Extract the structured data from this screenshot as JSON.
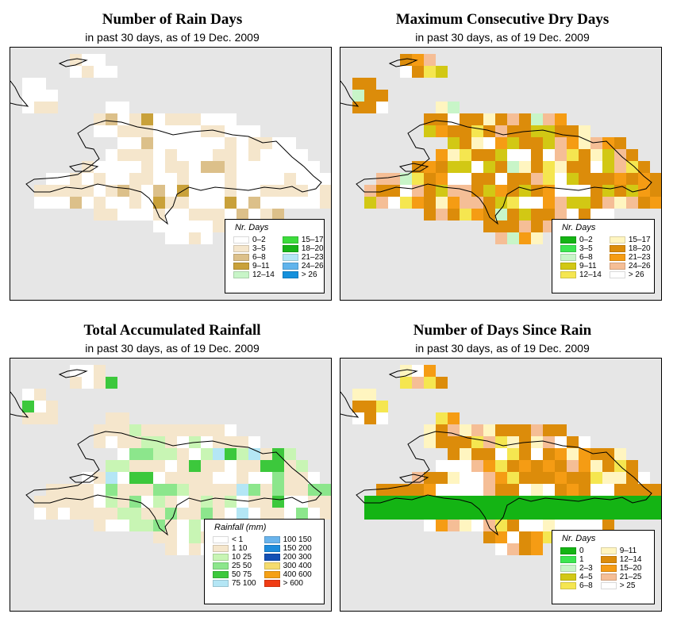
{
  "colors": {
    "map_background": "#e6e6e6",
    "coastline": "#000000"
  },
  "panels": [
    {
      "id": "rain-days",
      "title": "Number of Rain Days",
      "subtitle": "in past 30 days, as of  19 Dec. 2009",
      "legend": {
        "title": "Nr. Days",
        "items": [
          {
            "label": "0–2",
            "color": "#ffffff"
          },
          {
            "label": "3–5",
            "color": "#f5e6cc"
          },
          {
            "label": "6–8",
            "color": "#dcc08a"
          },
          {
            "label": "9–11",
            "color": "#c9a13a"
          },
          {
            "label": "12–14",
            "color": "#c8f5c8"
          },
          {
            "label": "15–17",
            "color": "#3cdc3c"
          },
          {
            "label": "18–20",
            "color": "#18b418"
          },
          {
            "label": "21–23",
            "color": "#b4e6f5"
          },
          {
            "label": "24–26",
            "color": "#60b4ec"
          },
          {
            "label": "> 26",
            "color": "#1490dc"
          }
        ]
      },
      "grid_palette": [
        "#ffffff",
        "#f5e6cc",
        "#dcc08a",
        "#c9a13a"
      ],
      "grid_weights": [
        62,
        30,
        6,
        2
      ]
    },
    {
      "id": "dry-days",
      "title": "Maximum Consecutive Dry Days",
      "subtitle": "in past 30 days, as of  19 Dec. 2009",
      "legend": {
        "title": "Nr. Days",
        "items": [
          {
            "label": "0–2",
            "color": "#14b414"
          },
          {
            "label": "3–5",
            "color": "#3ce650"
          },
          {
            "label": "6–8",
            "color": "#c8f5c8"
          },
          {
            "label": "9–11",
            "color": "#d2c814"
          },
          {
            "label": "12–14",
            "color": "#f5e650"
          },
          {
            "label": "15–17",
            "color": "#fff5c0"
          },
          {
            "label": "18–20",
            "color": "#dc8c0a"
          },
          {
            "label": "21–23",
            "color": "#f59c14"
          },
          {
            "label": "24–26",
            "color": "#f5be96"
          },
          {
            "label": "> 26",
            "color": "#ffffff"
          }
        ]
      },
      "grid_palette": [
        "#dc8c0a",
        "#f59c14",
        "#f5be96",
        "#d2c814",
        "#f5e650",
        "#fff5c0",
        "#ffffff",
        "#c8f5c8"
      ],
      "grid_weights": [
        38,
        14,
        12,
        10,
        8,
        8,
        8,
        2
      ]
    },
    {
      "id": "rainfall",
      "title": "Total Accumulated Rainfall",
      "subtitle": "in past 30 days, as of  19 Dec. 2009",
      "legend": {
        "title": "Rainfall (mm)",
        "items": [
          {
            "label": "< 1",
            "color": "#ffffff"
          },
          {
            "label": "1    10",
            "color": "#f5e6cc"
          },
          {
            "label": "10    25",
            "color": "#c8f5b4"
          },
          {
            "label": "25    50",
            "color": "#8ce68c"
          },
          {
            "label": "50    75",
            "color": "#3cc83c"
          },
          {
            "label": "75  100",
            "color": "#b4e6f5"
          },
          {
            "label": "100  150",
            "color": "#6ab4ec"
          },
          {
            "label": "150  200",
            "color": "#1e8cdc"
          },
          {
            "label": "200  300",
            "color": "#1450b4"
          },
          {
            "label": "300  400",
            "color": "#f5dc6e"
          },
          {
            "label": "400  600",
            "color": "#f5a014"
          },
          {
            "label": "> 600",
            "color": "#f03c14"
          }
        ]
      },
      "grid_palette": [
        "#f5e6cc",
        "#ffffff",
        "#c8f5b4",
        "#8ce68c",
        "#3cc83c",
        "#b4e6f5"
      ],
      "grid_weights": [
        48,
        18,
        16,
        10,
        6,
        2
      ]
    },
    {
      "id": "days-since-rain",
      "title": "Number of Days Since Rain",
      "subtitle": "in past 30 days, as of  19 Dec. 2009",
      "legend": {
        "title": "Nr. Days",
        "items": [
          {
            "label": "0",
            "color": "#14b414"
          },
          {
            "label": "1",
            "color": "#3ce650"
          },
          {
            "label": "2–3",
            "color": "#c8f5c8"
          },
          {
            "label": "4–5",
            "color": "#d2c814"
          },
          {
            "label": "6–8",
            "color": "#f5e650"
          },
          {
            "label": "9–11",
            "color": "#fff5c0"
          },
          {
            "label": "12–14",
            "color": "#dc8c0a"
          },
          {
            "label": "15–20",
            "color": "#f59c14"
          },
          {
            "label": "21–25",
            "color": "#f5be96"
          },
          {
            "label": "> 25",
            "color": "#ffffff"
          }
        ]
      },
      "grid_palette": [
        "#dc8c0a",
        "#ffffff",
        "#fff5c0",
        "#f5e650",
        "#f5be96",
        "#f59c14"
      ],
      "grid_weights": [
        38,
        18,
        14,
        10,
        10,
        10
      ]
    }
  ]
}
